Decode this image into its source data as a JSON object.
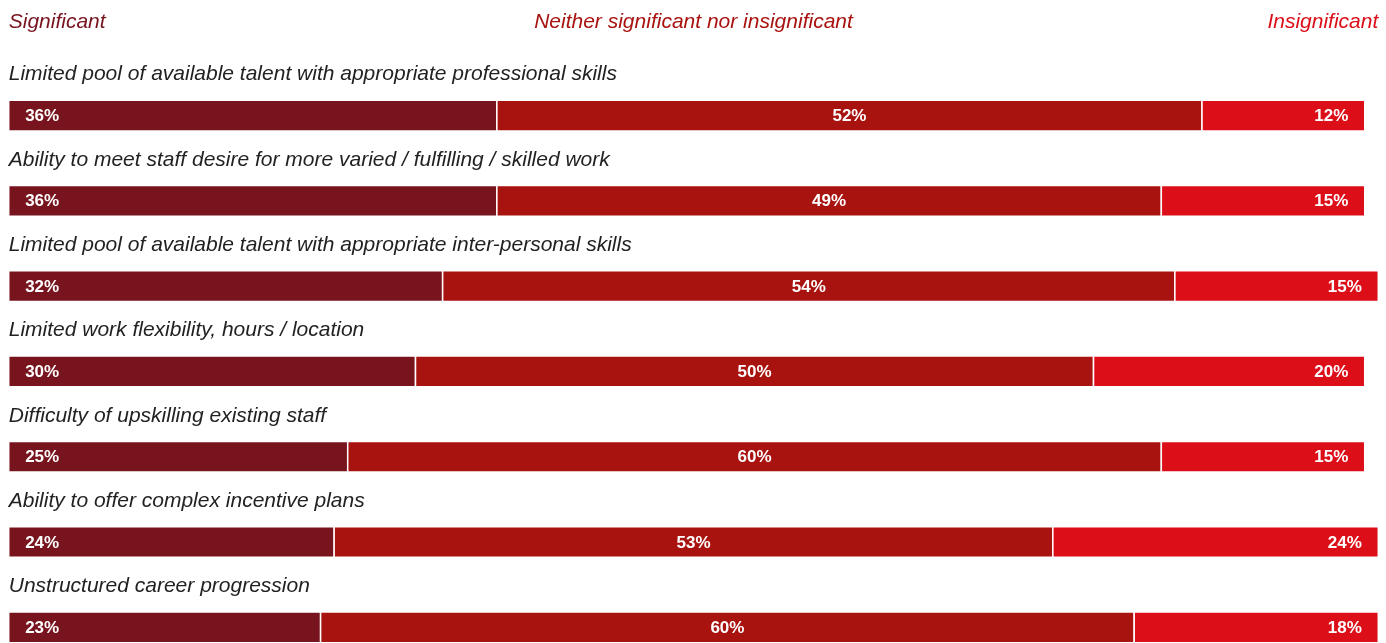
{
  "chart_data": {
    "type": "bar",
    "orientation": "horizontal",
    "stacked": true,
    "legend": "top",
    "grid": false,
    "tick_labels": false,
    "categories": [
      "Limited pool of available talent with appropriate professional skills",
      "Ability to meet staff desire for more varied / fulfilling / skilled work",
      "Limited pool of available talent with appropriate inter-personal skills",
      "Limited work flexibility, hours / location",
      "Difficulty of upskilling existing staff",
      "Ability to offer complex incentive plans",
      "Unstructured career progression"
    ],
    "series": [
      {
        "name": "Significant",
        "color": "#78141e",
        "values": [
          36,
          36,
          32,
          30,
          25,
          24,
          23
        ],
        "value_labels": [
          "36%",
          "36%",
          "32%",
          "30%",
          "25%",
          "24%",
          "23%"
        ]
      },
      {
        "name": "Neither significant nor insignificant",
        "color": "#a8120f",
        "values": [
          52,
          49,
          54,
          50,
          60,
          53,
          60
        ],
        "value_labels": [
          "52%",
          "49%",
          "54%",
          "50%",
          "60%",
          "53%",
          "60%"
        ]
      },
      {
        "name": "Insignificant",
        "color": "#dc0f19",
        "values": [
          12,
          15,
          15,
          20,
          15,
          24,
          18
        ],
        "value_labels": [
          "12%",
          "15%",
          "15%",
          "20%",
          "15%",
          "24%",
          "18%"
        ]
      }
    ]
  }
}
